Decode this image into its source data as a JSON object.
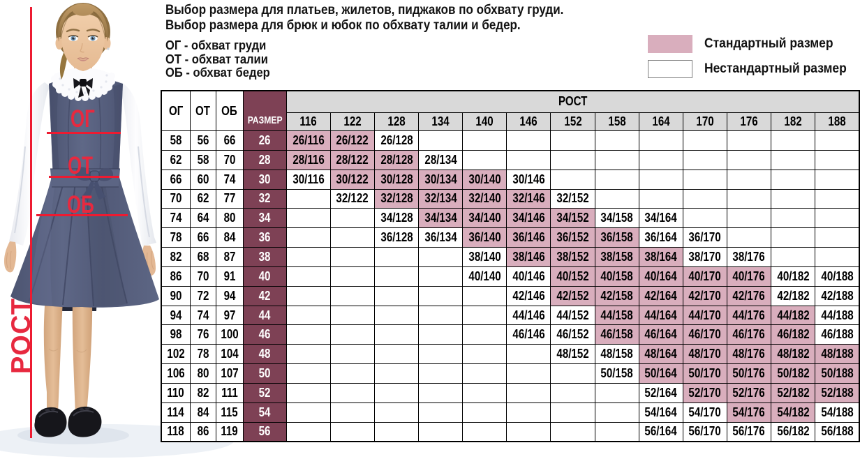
{
  "header": {
    "title_line1": "Выбор размера для платьев, жилетов, пиджаков по обхвату груди.",
    "title_line2": "Выбор размера для брюк и юбок по обхвату талии и бедер.",
    "abbreviations": [
      "ОГ - обхват груди",
      "ОТ - обхват талии",
      "ОБ - обхват бедер"
    ]
  },
  "legend": {
    "standard_label": "Стандартный размер",
    "nonstandard_label": "Нестандартный размер",
    "standard_color": "#d9aebd",
    "nonstandard_color": "#ffffff"
  },
  "photo": {
    "chest_label": "ОГ",
    "waist_label": "ОТ",
    "hips_label": "ОБ",
    "height_label": "РОСТ",
    "annotation_color": "#e7293f",
    "subject": "girl in white blouse and navy school pinafore dress with measurement lines"
  },
  "chart_data": {
    "type": "table",
    "columns_fixed": [
      "ОГ",
      "ОТ",
      "ОБ",
      "РАЗМЕР"
    ],
    "height_header": "РОСТ",
    "heights": [
      "116",
      "122",
      "128",
      "134",
      "140",
      "146",
      "152",
      "158",
      "164",
      "170",
      "176",
      "182",
      "188"
    ],
    "header_bg": "#d9d9d9",
    "size_col_bg": "#7e4155",
    "standard_bg": "#d9aebd",
    "legend": [
      {
        "label": "Стандартный размер",
        "color": "#d9aebd"
      },
      {
        "label": "Нестандартный размер",
        "color": "#ffffff"
      }
    ],
    "rows": [
      {
        "og": "58",
        "ot": "56",
        "ob": "66",
        "size": "26",
        "cells": [
          {
            "v": "26/116",
            "std": true
          },
          {
            "v": "26/122",
            "std": true
          },
          {
            "v": "26/128",
            "std": false
          },
          null,
          null,
          null,
          null,
          null,
          null,
          null,
          null,
          null,
          null
        ]
      },
      {
        "og": "62",
        "ot": "58",
        "ob": "70",
        "size": "28",
        "cells": [
          {
            "v": "28/116",
            "std": true
          },
          {
            "v": "28/122",
            "std": true
          },
          {
            "v": "28/128",
            "std": true
          },
          {
            "v": "28/134",
            "std": false
          },
          null,
          null,
          null,
          null,
          null,
          null,
          null,
          null,
          null
        ]
      },
      {
        "og": "66",
        "ot": "60",
        "ob": "74",
        "size": "30",
        "cells": [
          {
            "v": "30/116",
            "std": false
          },
          {
            "v": "30/122",
            "std": true
          },
          {
            "v": "30/128",
            "std": true
          },
          {
            "v": "30/134",
            "std": true
          },
          {
            "v": "30/140",
            "std": true
          },
          {
            "v": "30/146",
            "std": false
          },
          null,
          null,
          null,
          null,
          null,
          null,
          null
        ]
      },
      {
        "og": "70",
        "ot": "62",
        "ob": "77",
        "size": "32",
        "cells": [
          null,
          {
            "v": "32/122",
            "std": false
          },
          {
            "v": "32/128",
            "std": true
          },
          {
            "v": "32/134",
            "std": true
          },
          {
            "v": "32/140",
            "std": true
          },
          {
            "v": "32/146",
            "std": true
          },
          {
            "v": "32/152",
            "std": false
          },
          null,
          null,
          null,
          null,
          null,
          null
        ]
      },
      {
        "og": "74",
        "ot": "64",
        "ob": "80",
        "size": "34",
        "cells": [
          null,
          null,
          {
            "v": "34/128",
            "std": false
          },
          {
            "v": "34/134",
            "std": true
          },
          {
            "v": "34/140",
            "std": true
          },
          {
            "v": "34/146",
            "std": true
          },
          {
            "v": "34/152",
            "std": true
          },
          {
            "v": "34/158",
            "std": false
          },
          {
            "v": "34/164",
            "std": false
          },
          null,
          null,
          null,
          null
        ]
      },
      {
        "og": "78",
        "ot": "66",
        "ob": "84",
        "size": "36",
        "cells": [
          null,
          null,
          {
            "v": "36/128",
            "std": false
          },
          {
            "v": "36/134",
            "std": false
          },
          {
            "v": "36/140",
            "std": true
          },
          {
            "v": "36/146",
            "std": true
          },
          {
            "v": "36/152",
            "std": true
          },
          {
            "v": "36/158",
            "std": true
          },
          {
            "v": "36/164",
            "std": false
          },
          {
            "v": "36/170",
            "std": false
          },
          null,
          null,
          null
        ]
      },
      {
        "og": "82",
        "ot": "68",
        "ob": "87",
        "size": "38",
        "cells": [
          null,
          null,
          null,
          null,
          {
            "v": "38/140",
            "std": false
          },
          {
            "v": "38/146",
            "std": true
          },
          {
            "v": "38/152",
            "std": true
          },
          {
            "v": "38/158",
            "std": true
          },
          {
            "v": "38/164",
            "std": true
          },
          {
            "v": "38/170",
            "std": false
          },
          {
            "v": "38/176",
            "std": false
          },
          null,
          null
        ]
      },
      {
        "og": "86",
        "ot": "70",
        "ob": "91",
        "size": "40",
        "cells": [
          null,
          null,
          null,
          null,
          {
            "v": "40/140",
            "std": false
          },
          {
            "v": "40/146",
            "std": false
          },
          {
            "v": "40/152",
            "std": true
          },
          {
            "v": "40/158",
            "std": true
          },
          {
            "v": "40/164",
            "std": true
          },
          {
            "v": "40/170",
            "std": true
          },
          {
            "v": "40/176",
            "std": true
          },
          {
            "v": "40/182",
            "std": false
          },
          {
            "v": "40/188",
            "std": false
          }
        ]
      },
      {
        "og": "90",
        "ot": "72",
        "ob": "94",
        "size": "42",
        "cells": [
          null,
          null,
          null,
          null,
          null,
          {
            "v": "42/146",
            "std": false
          },
          {
            "v": "42/152",
            "std": true
          },
          {
            "v": "42/158",
            "std": true
          },
          {
            "v": "42/164",
            "std": true
          },
          {
            "v": "42/170",
            "std": true
          },
          {
            "v": "42/176",
            "std": true
          },
          {
            "v": "42/182",
            "std": false
          },
          {
            "v": "42/188",
            "std": false
          }
        ]
      },
      {
        "og": "94",
        "ot": "74",
        "ob": "97",
        "size": "44",
        "cells": [
          null,
          null,
          null,
          null,
          null,
          {
            "v": "44/146",
            "std": false
          },
          {
            "v": "44/152",
            "std": false
          },
          {
            "v": "44/158",
            "std": true
          },
          {
            "v": "44/164",
            "std": true
          },
          {
            "v": "44/170",
            "std": true
          },
          {
            "v": "44/176",
            "std": true
          },
          {
            "v": "44/182",
            "std": true
          },
          {
            "v": "44/188",
            "std": false
          }
        ]
      },
      {
        "og": "98",
        "ot": "76",
        "ob": "100",
        "size": "46",
        "cells": [
          null,
          null,
          null,
          null,
          null,
          {
            "v": "46/146",
            "std": false
          },
          {
            "v": "46/152",
            "std": false
          },
          {
            "v": "46/158",
            "std": true
          },
          {
            "v": "46/164",
            "std": true
          },
          {
            "v": "46/170",
            "std": true
          },
          {
            "v": "46/176",
            "std": true
          },
          {
            "v": "46/182",
            "std": true
          },
          {
            "v": "46/188",
            "std": false
          }
        ]
      },
      {
        "og": "102",
        "ot": "78",
        "ob": "104",
        "size": "48",
        "cells": [
          null,
          null,
          null,
          null,
          null,
          null,
          {
            "v": "48/152",
            "std": false
          },
          {
            "v": "48/158",
            "std": false
          },
          {
            "v": "48/164",
            "std": true
          },
          {
            "v": "48/170",
            "std": true
          },
          {
            "v": "48/176",
            "std": true
          },
          {
            "v": "48/182",
            "std": true
          },
          {
            "v": "48/188",
            "std": true
          }
        ]
      },
      {
        "og": "106",
        "ot": "80",
        "ob": "107",
        "size": "50",
        "cells": [
          null,
          null,
          null,
          null,
          null,
          null,
          null,
          {
            "v": "50/158",
            "std": false
          },
          {
            "v": "50/164",
            "std": true
          },
          {
            "v": "50/170",
            "std": true
          },
          {
            "v": "50/176",
            "std": true
          },
          {
            "v": "50/182",
            "std": true
          },
          {
            "v": "50/188",
            "std": true
          }
        ]
      },
      {
        "og": "110",
        "ot": "82",
        "ob": "111",
        "size": "52",
        "cells": [
          null,
          null,
          null,
          null,
          null,
          null,
          null,
          null,
          {
            "v": "52/164",
            "std": false
          },
          {
            "v": "52/170",
            "std": true
          },
          {
            "v": "52/176",
            "std": true
          },
          {
            "v": "52/182",
            "std": true
          },
          {
            "v": "52/188",
            "std": true
          }
        ]
      },
      {
        "og": "114",
        "ot": "84",
        "ob": "115",
        "size": "54",
        "cells": [
          null,
          null,
          null,
          null,
          null,
          null,
          null,
          null,
          {
            "v": "54/164",
            "std": false
          },
          {
            "v": "54/170",
            "std": false
          },
          {
            "v": "54/176",
            "std": true
          },
          {
            "v": "54/182",
            "std": true
          },
          {
            "v": "54/188",
            "std": false
          }
        ]
      },
      {
        "og": "118",
        "ot": "86",
        "ob": "119",
        "size": "56",
        "cells": [
          null,
          null,
          null,
          null,
          null,
          null,
          null,
          null,
          {
            "v": "56/164",
            "std": false
          },
          {
            "v": "56/170",
            "std": false
          },
          {
            "v": "56/176",
            "std": false
          },
          {
            "v": "56/182",
            "std": false
          },
          {
            "v": "56/188",
            "std": false
          }
        ]
      }
    ]
  }
}
